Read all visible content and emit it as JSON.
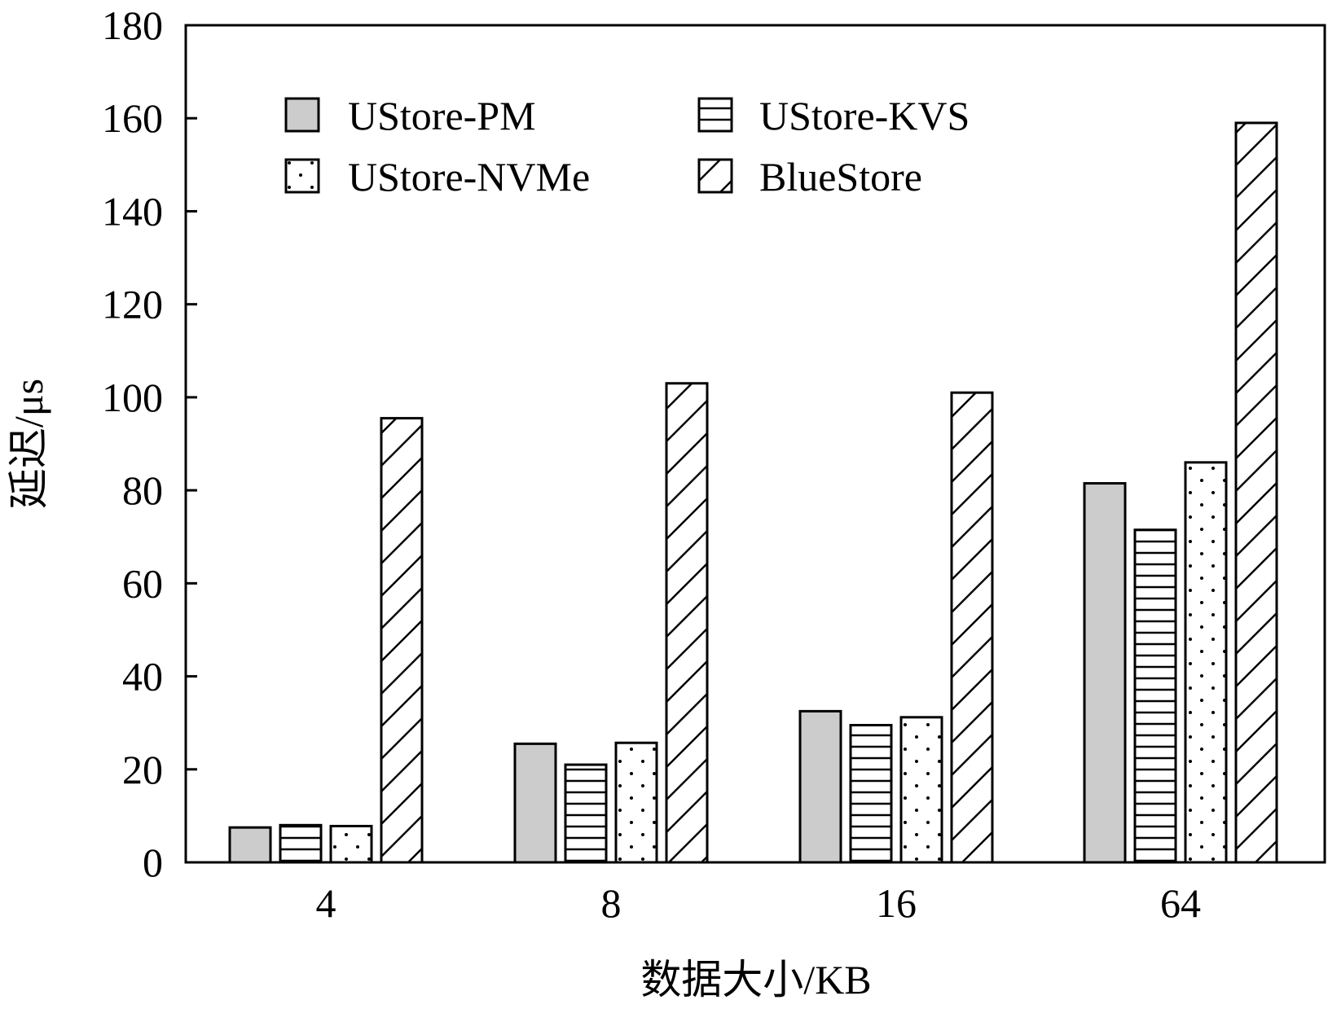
{
  "chart_data": {
    "type": "bar",
    "xlabel": "数据大小/KB",
    "ylabel": "延迟/μs",
    "ylim": [
      0,
      180
    ],
    "yticks": [
      "0",
      "20",
      "40",
      "60",
      "80",
      "100",
      "120",
      "140",
      "160",
      "180"
    ],
    "categories": [
      "4",
      "8",
      "16",
      "64"
    ],
    "legend_position": "top-left",
    "series": [
      {
        "name": "UStore-PM",
        "pattern": "solid",
        "fill": "#cccccc",
        "values": [
          7.5,
          25.5,
          32.5,
          81.5
        ]
      },
      {
        "name": "UStore-KVS",
        "pattern": "hlines",
        "fill": "#ffffff",
        "values": [
          8,
          21,
          29.5,
          71.5
        ]
      },
      {
        "name": "UStore-NVMe",
        "pattern": "dots",
        "fill": "#ffffff",
        "values": [
          7.8,
          25.7,
          31.2,
          86
        ]
      },
      {
        "name": "BlueStore",
        "pattern": "diagonal",
        "fill": "#ffffff",
        "values": [
          95.5,
          103,
          101,
          159
        ]
      }
    ]
  }
}
